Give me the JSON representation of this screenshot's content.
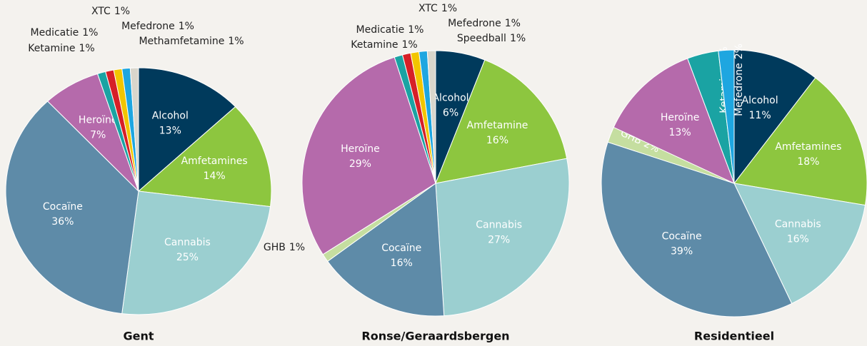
{
  "chart_data": [
    {
      "type": "pie",
      "title": "Gent",
      "categories": [
        "Alcohol",
        "Amfetamines",
        "Cannabis",
        "Cocaïne",
        "Heroïne",
        "Ketamine",
        "Medicatie",
        "XTC",
        "Mefedrone",
        "Methamfetamine"
      ],
      "values": [
        13,
        14,
        25,
        36,
        7,
        1,
        1,
        1,
        1,
        1
      ],
      "value_labels": [
        "13%",
        "14%",
        "25%",
        "36%",
        "7%",
        "1%",
        "1%",
        "1%",
        "1%",
        "1%"
      ],
      "colors": [
        "#003a5c",
        "#8dc63f",
        "#9bcfd0",
        "#5e8ba8",
        "#b56aab",
        "#1aa3a3",
        "#d62027",
        "#f2c500",
        "#1ea6e0",
        "#d9d6cc"
      ]
    },
    {
      "type": "pie",
      "title": "Ronse/Geraardsbergen",
      "categories": [
        "Alcohol",
        "Amfetamine",
        "Cannabis",
        "Cocaïne",
        "GHB",
        "Heroïne",
        "Ketamine",
        "Medicatie",
        "XTC",
        "Mefedrone",
        "Speedball"
      ],
      "values": [
        6,
        16,
        27,
        16,
        1,
        29,
        1,
        1,
        1,
        1,
        1
      ],
      "value_labels": [
        "6%",
        "16%",
        "27%",
        "16%",
        "1%",
        "29%",
        "1%",
        "1%",
        "1%",
        "1%",
        "1%"
      ],
      "colors": [
        "#003a5c",
        "#8dc63f",
        "#9bcfd0",
        "#5e8ba8",
        "#c5dea0",
        "#b56aab",
        "#1aa3a3",
        "#d62027",
        "#f2c500",
        "#1ea6e0",
        "#d9d6cc"
      ]
    },
    {
      "type": "pie",
      "title": "Residentieel",
      "categories": [
        "Alcohol",
        "Amfetamines",
        "Cannabis",
        "Cocaïne",
        "GHB",
        "Heroïne",
        "Ketamine",
        "Mefedrone"
      ],
      "values": [
        11,
        18,
        16,
        39,
        2,
        13,
        4,
        2
      ],
      "value_labels": [
        "11%",
        "18%",
        "16%",
        "39%",
        "2%",
        "13%",
        "4%",
        "2%"
      ],
      "colors": [
        "#003a5c",
        "#8dc63f",
        "#9bcfd0",
        "#5e8ba8",
        "#c5dea0",
        "#b56aab",
        "#1aa3a3",
        "#1ea6e0"
      ]
    }
  ]
}
